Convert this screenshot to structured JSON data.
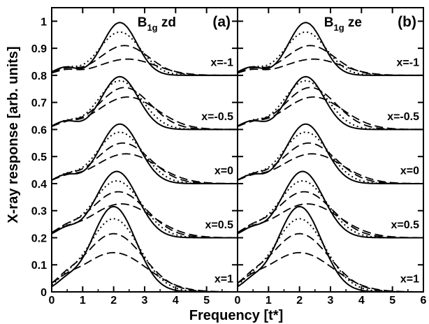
{
  "chart_data": {
    "type": "line",
    "xlabel": "Frequency [t*]",
    "ylabel": "X-ray response [arb. units]",
    "xlim": [
      0,
      6
    ],
    "ylim": [
      0,
      1.05
    ],
    "x_ticks": [
      "0",
      "1",
      "2",
      "3",
      "4",
      "5"
    ],
    "x_ticks_last_panel": [
      "0",
      "1",
      "2",
      "3",
      "4",
      "5",
      "6"
    ],
    "y_ticks": [
      "0",
      "0.1",
      "0.2",
      "0.3",
      "0.4",
      "0.5",
      "0.6",
      "0.7",
      "0.8",
      "0.9",
      "1"
    ],
    "line_styles": [
      "solid",
      "dotted",
      "dashed",
      "dashed"
    ],
    "panels": [
      {
        "label": "(a)",
        "symmetry_main": "B",
        "symmetry_sub": "1g",
        "symmetry_tail": " zd"
      },
      {
        "label": "(b)",
        "symmetry_main": "B",
        "symmetry_sub": "1g",
        "symmetry_tail": " ze"
      }
    ],
    "offsets": [
      {
        "label": "x=-1",
        "baseline": 0.8,
        "peaks": [
          0.995,
          0.96,
          0.91,
          0.86
        ],
        "centers": [
          2.2,
          2.2,
          2.35,
          2.45
        ]
      },
      {
        "label": "x=-0.5",
        "baseline": 0.6,
        "peaks": [
          0.795,
          0.78,
          0.755,
          0.72
        ],
        "centers": [
          2.2,
          2.2,
          2.35,
          2.45
        ]
      },
      {
        "label": "x=0",
        "baseline": 0.4,
        "peaks": [
          0.62,
          0.59,
          0.55,
          0.51
        ],
        "centers": [
          2.2,
          2.2,
          2.3,
          2.4
        ]
      },
      {
        "label": "x=0.5",
        "baseline": 0.2,
        "peaks": [
          0.445,
          0.41,
          0.37,
          0.325
        ],
        "centers": [
          2.1,
          2.1,
          2.15,
          2.25
        ]
      },
      {
        "label": "x=1",
        "baseline": 0.0,
        "peaks": [
          0.315,
          0.27,
          0.215,
          0.145
        ],
        "centers": [
          2.0,
          2.0,
          2.0,
          2.0
        ]
      }
    ]
  }
}
